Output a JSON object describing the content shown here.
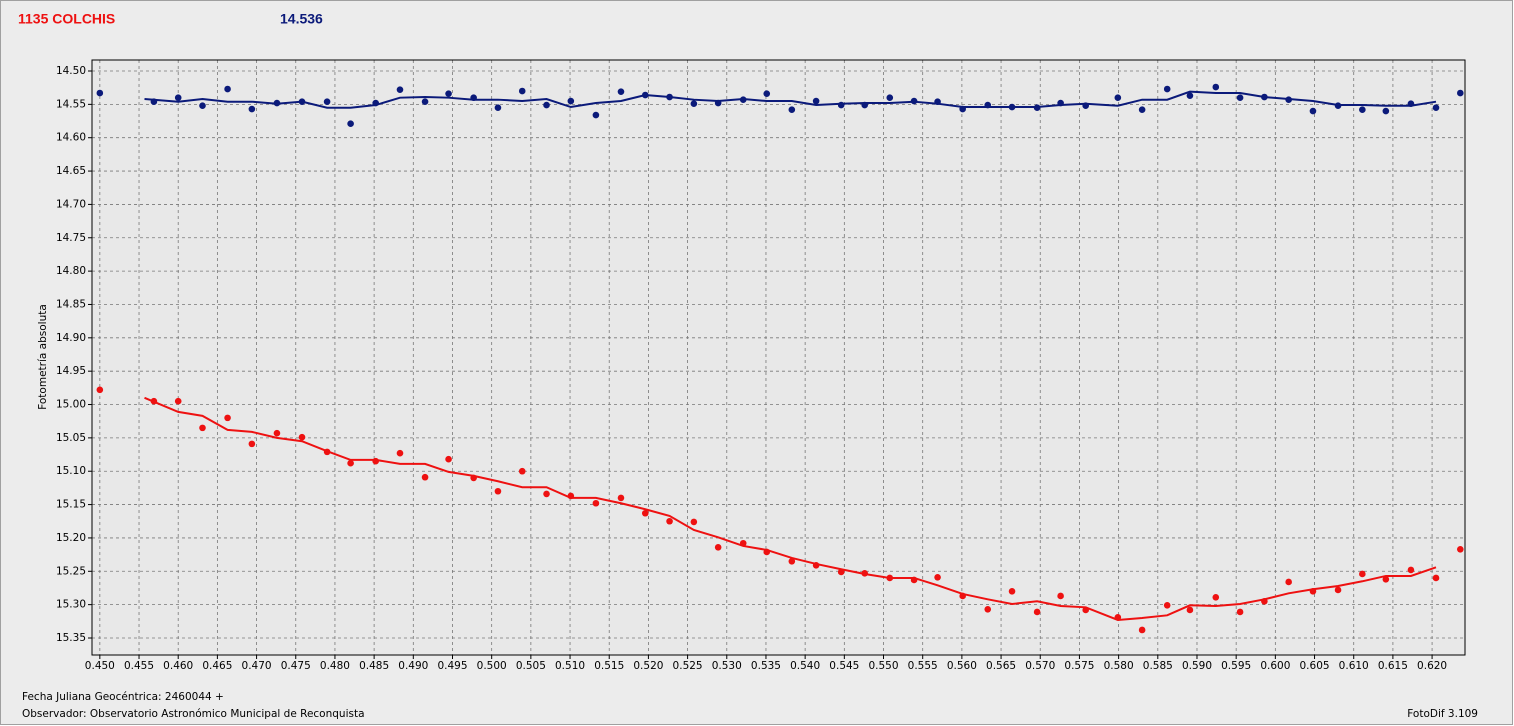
{
  "chart_data": {
    "type": "scatter",
    "title": "1135 COLCHIS",
    "subtitle": "14.536",
    "ylabel": "Fotometría absoluta",
    "xlabel": "Fecha Juliana Geocéntrica: 2460044 +",
    "x": [
      0.45,
      0.4569,
      0.46,
      0.4631,
      0.4663,
      0.4694,
      0.4726,
      0.4758,
      0.479,
      0.482,
      0.4852,
      0.4883,
      0.4915,
      0.4945,
      0.4977,
      0.5008,
      0.5039,
      0.507,
      0.5101,
      0.5133,
      0.5165,
      0.5196,
      0.5227,
      0.5258,
      0.5289,
      0.5321,
      0.5351,
      0.5383,
      0.5414,
      0.5446,
      0.5476,
      0.5508,
      0.5539,
      0.5569,
      0.5601,
      0.5633,
      0.5664,
      0.5696,
      0.5726,
      0.5758,
      0.5799,
      0.583,
      0.5862,
      0.5891,
      0.5924,
      0.5955,
      0.5986,
      0.6017,
      0.6048,
      0.608,
      0.6111,
      0.6141,
      0.6173,
      0.6205,
      0.6236
    ],
    "series": [
      {
        "color": "#0b1a7a",
        "values": [
          14.533,
          14.546,
          14.54,
          14.552,
          14.527,
          14.557,
          14.548,
          14.546,
          14.546,
          14.579,
          14.548,
          14.528,
          14.546,
          14.534,
          14.54,
          14.555,
          14.53,
          14.551,
          14.545,
          14.566,
          14.531,
          14.536,
          14.539,
          14.549,
          14.548,
          14.543,
          14.534,
          14.558,
          14.545,
          14.551,
          14.551,
          14.54,
          14.545,
          14.546,
          14.557,
          14.551,
          14.554,
          14.555,
          14.548,
          14.552,
          14.54,
          14.558,
          14.527,
          14.537,
          14.524,
          14.54,
          14.539,
          14.543,
          14.56,
          14.552,
          14.558,
          14.56,
          14.549,
          14.555,
          14.533
        ]
      },
      {
        "color": "#ee1111",
        "values": [
          14.978,
          14.995,
          14.995,
          15.035,
          15.02,
          15.059,
          15.043,
          15.049,
          15.071,
          15.088,
          15.085,
          15.073,
          15.109,
          15.082,
          15.11,
          15.13,
          15.1,
          15.134,
          15.137,
          15.148,
          15.14,
          15.163,
          15.175,
          15.176,
          15.214,
          15.208,
          15.221,
          15.235,
          15.241,
          15.251,
          15.253,
          15.26,
          15.263,
          15.259,
          15.287,
          15.307,
          15.28,
          15.311,
          15.287,
          15.308,
          15.319,
          15.338,
          15.301,
          15.308,
          15.289,
          15.311,
          15.295,
          15.266,
          15.28,
          15.278,
          15.254,
          15.262,
          15.248,
          15.26,
          15.217
        ]
      }
    ],
    "trend_x": [
      0.4557,
      0.46,
      0.4631,
      0.4663,
      0.4694,
      0.4726,
      0.4758,
      0.479,
      0.482,
      0.4852,
      0.4883,
      0.4915,
      0.4945,
      0.4977,
      0.5008,
      0.5039,
      0.507,
      0.5101,
      0.5133,
      0.5165,
      0.5196,
      0.5227,
      0.5258,
      0.5289,
      0.5321,
      0.5351,
      0.5383,
      0.5414,
      0.5446,
      0.5476,
      0.5508,
      0.5539,
      0.5569,
      0.5601,
      0.5633,
      0.5664,
      0.5696,
      0.5726,
      0.5758,
      0.5799,
      0.583,
      0.5862,
      0.5891,
      0.5924,
      0.5955,
      0.5986,
      0.6017,
      0.6048,
      0.608,
      0.6111,
      0.6141,
      0.6173,
      0.6205
    ],
    "trends": [
      {
        "color": "#0b1a7a",
        "values": [
          14.542,
          14.546,
          14.542,
          14.546,
          14.546,
          14.549,
          14.546,
          14.555,
          14.555,
          14.551,
          14.54,
          14.539,
          14.54,
          14.543,
          14.543,
          14.545,
          14.542,
          14.554,
          14.548,
          14.545,
          14.536,
          14.539,
          14.543,
          14.545,
          14.542,
          14.545,
          14.545,
          14.551,
          14.549,
          14.548,
          14.548,
          14.546,
          14.549,
          14.554,
          14.554,
          14.554,
          14.554,
          14.551,
          14.549,
          14.552,
          14.543,
          14.543,
          14.531,
          14.533,
          14.533,
          14.539,
          14.542,
          14.545,
          14.551,
          14.551,
          14.552,
          14.552,
          14.546
        ]
      },
      {
        "color": "#ee1111",
        "values": [
          14.99,
          15.011,
          15.017,
          15.038,
          15.041,
          15.05,
          15.055,
          15.07,
          15.083,
          15.083,
          15.089,
          15.089,
          15.101,
          15.107,
          15.115,
          15.124,
          15.124,
          15.14,
          15.14,
          15.148,
          15.157,
          15.167,
          15.188,
          15.199,
          15.212,
          15.218,
          15.23,
          15.239,
          15.247,
          15.254,
          15.26,
          15.26,
          15.271,
          15.284,
          15.292,
          15.299,
          15.295,
          15.302,
          15.304,
          15.323,
          15.32,
          15.316,
          15.301,
          15.302,
          15.299,
          15.292,
          15.283,
          15.277,
          15.272,
          15.265,
          15.257,
          15.257,
          15.244
        ]
      }
    ],
    "xlim": [
      0.449,
      0.6242
    ],
    "ylim": [
      14.4835,
      15.3755
    ],
    "y_inverted": true,
    "grid": true,
    "xticks": [
      {
        "value": 0.45,
        "label": "0.450"
      },
      {
        "value": 0.455,
        "label": "0.455"
      },
      {
        "value": 0.46,
        "label": "0.460"
      },
      {
        "value": 0.465,
        "label": "0.465"
      },
      {
        "value": 0.47,
        "label": "0.470"
      },
      {
        "value": 0.475,
        "label": "0.475"
      },
      {
        "value": 0.48,
        "label": "0.480"
      },
      {
        "value": 0.485,
        "label": "0.485"
      },
      {
        "value": 0.49,
        "label": "0.490"
      },
      {
        "value": 0.495,
        "label": "0.495"
      },
      {
        "value": 0.5,
        "label": "0.500"
      },
      {
        "value": 0.505,
        "label": "0.505"
      },
      {
        "value": 0.51,
        "label": "0.510"
      },
      {
        "value": 0.515,
        "label": "0.515"
      },
      {
        "value": 0.52,
        "label": "0.520"
      },
      {
        "value": 0.525,
        "label": "0.525"
      },
      {
        "value": 0.53,
        "label": "0.530"
      },
      {
        "value": 0.535,
        "label": "0.535"
      },
      {
        "value": 0.54,
        "label": "0.540"
      },
      {
        "value": 0.545,
        "label": "0.545"
      },
      {
        "value": 0.55,
        "label": "0.550"
      },
      {
        "value": 0.555,
        "label": "0.555"
      },
      {
        "value": 0.56,
        "label": "0.560"
      },
      {
        "value": 0.565,
        "label": "0.565"
      },
      {
        "value": 0.57,
        "label": "0.570"
      },
      {
        "value": 0.575,
        "label": "0.575"
      },
      {
        "value": 0.58,
        "label": "0.580"
      },
      {
        "value": 0.585,
        "label": "0.585"
      },
      {
        "value": 0.59,
        "label": "0.590"
      },
      {
        "value": 0.595,
        "label": "0.595"
      },
      {
        "value": 0.6,
        "label": "0.600"
      },
      {
        "value": 0.605,
        "label": "0.605"
      },
      {
        "value": 0.61,
        "label": "0.610"
      },
      {
        "value": 0.615,
        "label": "0.615"
      },
      {
        "value": 0.62,
        "label": "0.620"
      }
    ],
    "yticks": [
      {
        "value": 14.5,
        "label": "14.50"
      },
      {
        "value": 14.55,
        "label": "14.55"
      },
      {
        "value": 14.6,
        "label": "14.60"
      },
      {
        "value": 14.65,
        "label": "14.65"
      },
      {
        "value": 14.7,
        "label": "14.70"
      },
      {
        "value": 14.75,
        "label": "14.75"
      },
      {
        "value": 14.8,
        "label": "14.80"
      },
      {
        "value": 14.85,
        "label": "14.85"
      },
      {
        "value": 14.9,
        "label": "14.90"
      },
      {
        "value": 14.95,
        "label": "14.95"
      },
      {
        "value": 15.0,
        "label": "15.00"
      },
      {
        "value": 15.05,
        "label": "15.05"
      },
      {
        "value": 15.1,
        "label": "15.10"
      },
      {
        "value": 15.15,
        "label": "15.15"
      },
      {
        "value": 15.2,
        "label": "15.20"
      },
      {
        "value": 15.25,
        "label": "15.25"
      },
      {
        "value": 15.3,
        "label": "15.30"
      },
      {
        "value": 15.35,
        "label": "15.35"
      }
    ]
  },
  "footer": {
    "observer": "Observador: Observatorio Astronómico Municipal de Reconquista",
    "software": "FotoDif 3.109"
  }
}
